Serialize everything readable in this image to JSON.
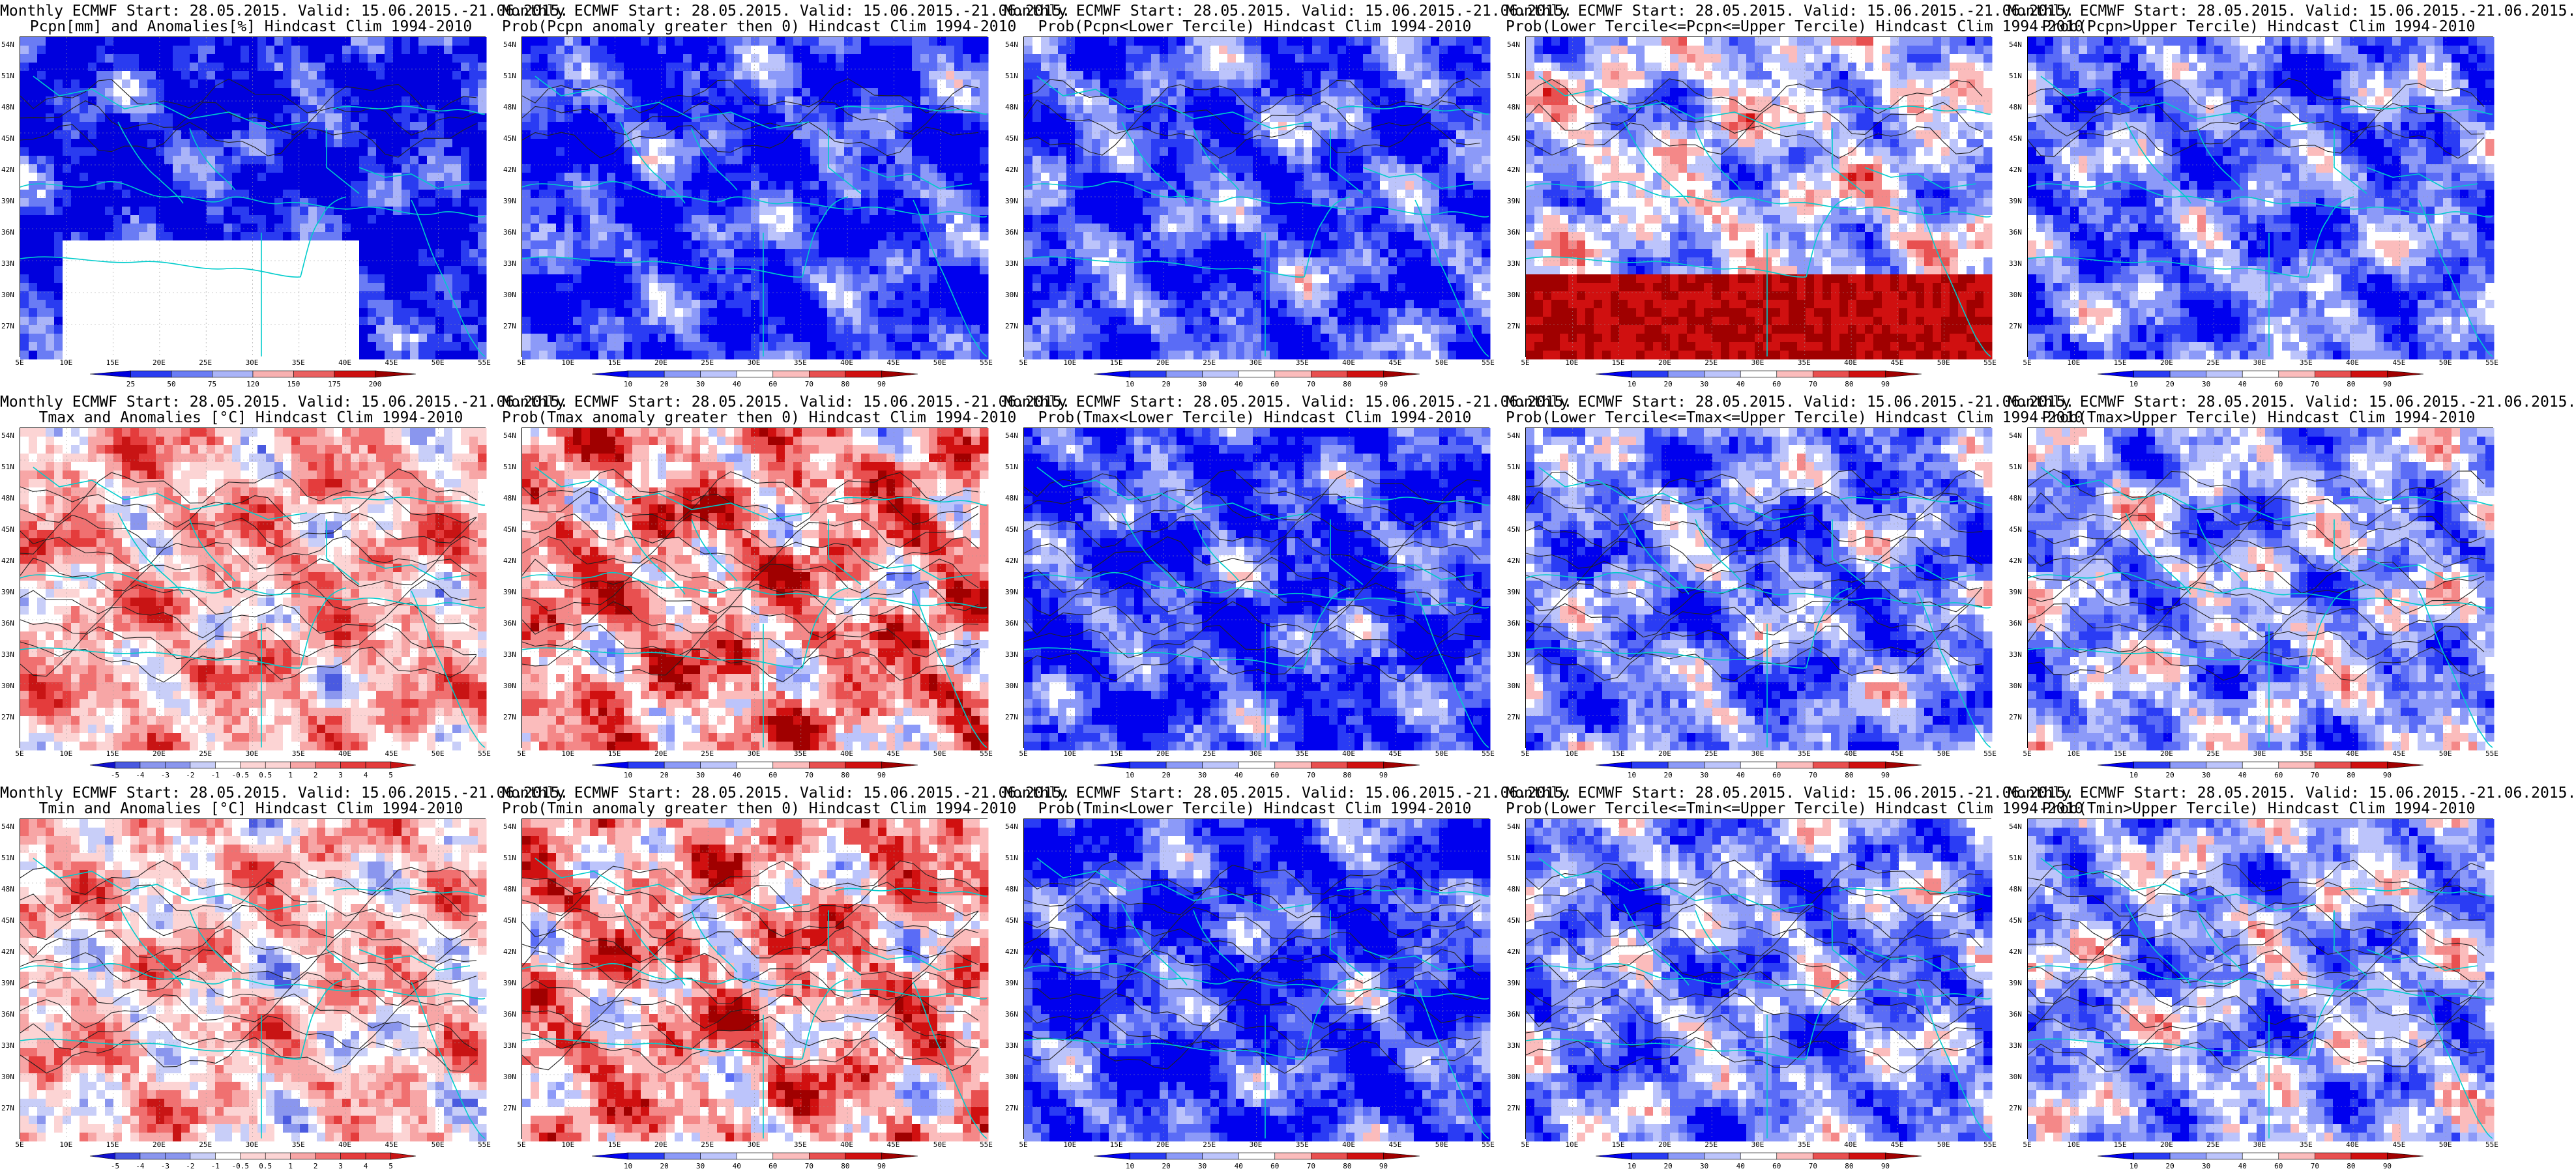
{
  "common": {
    "line1": "Monthly ECMWF Start: 28.05.2015. Valid: 15.06.2015.-21.06.2015.",
    "lat_labels": [
      "54N",
      "51N",
      "48N",
      "45N",
      "42N",
      "39N",
      "36N",
      "33N",
      "30N",
      "27N"
    ],
    "lon_labels": [
      "5E",
      "10E",
      "15E",
      "20E",
      "25E",
      "30E",
      "35E",
      "40E",
      "45E",
      "50E",
      "55E"
    ]
  },
  "panels": [
    {
      "subtitle": "Pcpn[mm] and Anomalies[%] Hindcast Clim 1994-2010",
      "scheme": "pcpanom",
      "bias": -0.9,
      "contours": "light",
      "ticks": [
        "25",
        "50",
        "75",
        "120",
        "150",
        "175",
        "200"
      ]
    },
    {
      "subtitle": "Prob(Pcpn anomaly greater then 0) Hindcast Clim 1994-2010",
      "scheme": "prob",
      "bias": -0.8,
      "contours": "light",
      "ticks": [
        "10",
        "20",
        "30",
        "40",
        "60",
        "70",
        "80",
        "90"
      ]
    },
    {
      "subtitle": "Prob(Pcpn<Lower Tercile) Hindcast Clim 1994-2010",
      "scheme": "prob",
      "bias": -0.7,
      "contours": "light",
      "ticks": [
        "10",
        "20",
        "30",
        "40",
        "60",
        "70",
        "80",
        "90"
      ]
    },
    {
      "subtitle": "Prob(Lower Tercile<=Pcpn<=Upper Tercile) Hindcast Clim 1994-2010",
      "scheme": "prob",
      "bias": -0.2,
      "contours": "light",
      "ticks": [
        "10",
        "20",
        "30",
        "40",
        "60",
        "70",
        "80",
        "90"
      ]
    },
    {
      "subtitle": "Prob(Pcpn>Upper Tercile) Hindcast Clim 1994-2010",
      "scheme": "prob",
      "bias": -0.55,
      "contours": "light",
      "ticks": [
        "10",
        "20",
        "30",
        "40",
        "60",
        "70",
        "80",
        "90"
      ]
    },
    {
      "subtitle": "Tmax and Anomalies [°C] Hindcast Clim 1994-2010",
      "scheme": "anom",
      "bias": 0.25,
      "contours": "heavy",
      "ticks": [
        "-5",
        "-4",
        "-3",
        "-2",
        "-1",
        "-0.5",
        "0.5",
        "1",
        "2",
        "3",
        "4",
        "5"
      ]
    },
    {
      "subtitle": "Prob(Tmax anomaly greater then 0) Hindcast Clim 1994-2010",
      "scheme": "prob",
      "bias": 0.35,
      "contours": "heavy",
      "ticks": [
        "10",
        "20",
        "30",
        "40",
        "60",
        "70",
        "80",
        "90"
      ]
    },
    {
      "subtitle": "Prob(Tmax<Lower Tercile) Hindcast Clim 1994-2010",
      "scheme": "prob",
      "bias": -0.75,
      "contours": "heavy",
      "ticks": [
        "10",
        "20",
        "30",
        "40",
        "60",
        "70",
        "80",
        "90"
      ]
    },
    {
      "subtitle": "Prob(Lower Tercile<=Tmax<=Upper Tercile) Hindcast Clim 1994-2010",
      "scheme": "prob",
      "bias": -0.5,
      "contours": "heavy",
      "ticks": [
        "10",
        "20",
        "30",
        "40",
        "60",
        "70",
        "80",
        "90"
      ]
    },
    {
      "subtitle": "Prob(Tmax>Upper Tercile) Hindcast Clim 1994-2010",
      "scheme": "prob",
      "bias": -0.35,
      "contours": "heavy",
      "ticks": [
        "10",
        "20",
        "30",
        "40",
        "60",
        "70",
        "80",
        "90"
      ]
    },
    {
      "subtitle": "Tmin and Anomalies [°C] Hindcast Clim 1994-2010",
      "scheme": "anom",
      "bias": 0.15,
      "contours": "heavy",
      "ticks": [
        "-5",
        "-4",
        "-3",
        "-2",
        "-1",
        "-0.5",
        "0.5",
        "1",
        "2",
        "3",
        "4",
        "5"
      ]
    },
    {
      "subtitle": "Prob(Tmin anomaly greater then 0) Hindcast Clim 1994-2010",
      "scheme": "prob",
      "bias": 0.3,
      "contours": "heavy",
      "ticks": [
        "10",
        "20",
        "30",
        "40",
        "60",
        "70",
        "80",
        "90"
      ]
    },
    {
      "subtitle": "Prob(Tmin<Lower Tercile) Hindcast Clim 1994-2010",
      "scheme": "prob",
      "bias": -0.75,
      "contours": "heavy",
      "ticks": [
        "10",
        "20",
        "30",
        "40",
        "60",
        "70",
        "80",
        "90"
      ]
    },
    {
      "subtitle": "Prob(Lower Tercile<=Tmin<=Upper Tercile) Hindcast Clim 1994-2010",
      "scheme": "prob",
      "bias": -0.45,
      "contours": "heavy",
      "ticks": [
        "10",
        "20",
        "30",
        "40",
        "60",
        "70",
        "80",
        "90"
      ]
    },
    {
      "subtitle": "Prob(Tmin>Upper Tercile) Hindcast Clim 1994-2010",
      "scheme": "prob",
      "bias": -0.35,
      "contours": "heavy",
      "ticks": [
        "10",
        "20",
        "30",
        "40",
        "60",
        "70",
        "80",
        "90"
      ]
    }
  ],
  "colors": {
    "prob": [
      "#0000ee",
      "#2a3cf4",
      "#5a6cf6",
      "#8c9af8",
      "#bcc4fb",
      "#ffffff",
      "#fbbcbc",
      "#f48888",
      "#e85050",
      "#d01010",
      "#a00000"
    ],
    "pcpanom": [
      "#0000dd",
      "#2a3cf0",
      "#6a7cf4",
      "#aab4f8",
      "#ffffff",
      "#f8b0b0",
      "#ea6060",
      "#cc1010",
      "#990000"
    ],
    "anom": [
      "#1010cc",
      "#4a5ae0",
      "#8a96ee",
      "#c8cef8",
      "#ffffff",
      "#fcd4d4",
      "#f7a6a6",
      "#f07070",
      "#e43c3c",
      "#c81414"
    ],
    "coast": "#00cccc",
    "contour": "#222222"
  }
}
